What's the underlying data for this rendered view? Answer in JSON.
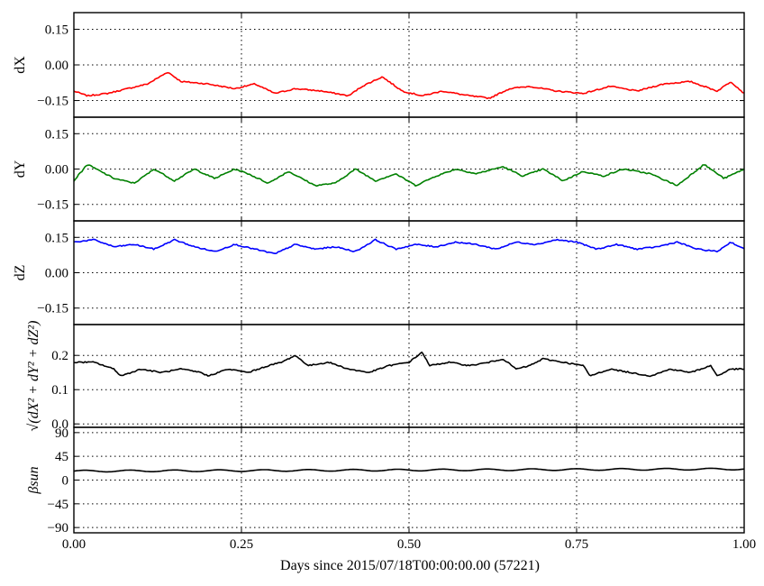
{
  "chart_data": {
    "type": "line",
    "xlabel": "Days since 2015/07/18T00:00:00.00 (57221)",
    "xlim": [
      0.0,
      1.0
    ],
    "xticks": [
      0.0,
      0.25,
      0.5,
      0.75,
      1.0
    ],
    "xtick_labels": [
      "0.00",
      "0.25",
      "0.50",
      "0.75",
      "1.00"
    ],
    "grid": true,
    "panels": [
      {
        "id": "dx",
        "ylabel": "dX",
        "ylim": [
          -0.22,
          0.22
        ],
        "yticks": [
          -0.15,
          0.0,
          0.15
        ],
        "ytick_labels": [
          "−0.15",
          "0.00",
          "0.15"
        ],
        "color": "#ff0000",
        "series": {
          "x": [
            0.0,
            0.02,
            0.05,
            0.08,
            0.11,
            0.14,
            0.16,
            0.2,
            0.24,
            0.27,
            0.3,
            0.33,
            0.37,
            0.41,
            0.43,
            0.46,
            0.49,
            0.52,
            0.55,
            0.59,
            0.62,
            0.65,
            0.68,
            0.72,
            0.76,
            0.8,
            0.84,
            0.88,
            0.92,
            0.96,
            0.98,
            1.0
          ],
          "y": [
            -0.11,
            -0.13,
            -0.12,
            -0.1,
            -0.08,
            -0.03,
            -0.07,
            -0.08,
            -0.1,
            -0.08,
            -0.12,
            -0.1,
            -0.11,
            -0.13,
            -0.09,
            -0.05,
            -0.11,
            -0.13,
            -0.11,
            -0.13,
            -0.14,
            -0.1,
            -0.09,
            -0.11,
            -0.12,
            -0.09,
            -0.11,
            -0.08,
            -0.07,
            -0.11,
            -0.07,
            -0.12
          ]
        }
      },
      {
        "id": "dy",
        "ylabel": "dY",
        "ylim": [
          -0.22,
          0.22
        ],
        "yticks": [
          -0.15,
          0.0,
          0.15
        ],
        "ytick_labels": [
          "−0.15",
          "0.00",
          "0.15"
        ],
        "color": "#008000",
        "series": {
          "x": [
            0.0,
            0.02,
            0.04,
            0.06,
            0.09,
            0.12,
            0.15,
            0.18,
            0.21,
            0.24,
            0.26,
            0.29,
            0.32,
            0.36,
            0.39,
            0.42,
            0.45,
            0.48,
            0.51,
            0.54,
            0.57,
            0.6,
            0.64,
            0.67,
            0.7,
            0.73,
            0.76,
            0.79,
            0.82,
            0.86,
            0.9,
            0.94,
            0.97,
            1.0
          ],
          "y": [
            -0.05,
            0.02,
            -0.01,
            -0.04,
            -0.06,
            0.0,
            -0.05,
            0.0,
            -0.04,
            0.0,
            -0.02,
            -0.06,
            -0.01,
            -0.07,
            -0.06,
            0.0,
            -0.05,
            -0.02,
            -0.07,
            -0.03,
            0.0,
            -0.02,
            0.01,
            -0.03,
            0.0,
            -0.05,
            -0.01,
            -0.03,
            0.0,
            -0.02,
            -0.07,
            0.02,
            -0.04,
            0.0
          ]
        }
      },
      {
        "id": "dz",
        "ylabel": "dZ",
        "ylim": [
          -0.22,
          0.22
        ],
        "yticks": [
          -0.15,
          0.0,
          0.15
        ],
        "ytick_labels": [
          "−0.15",
          "0.00",
          "0.15"
        ],
        "color": "#0000ff",
        "series": {
          "x": [
            0.0,
            0.03,
            0.06,
            0.09,
            0.12,
            0.15,
            0.18,
            0.21,
            0.24,
            0.27,
            0.3,
            0.33,
            0.36,
            0.39,
            0.42,
            0.45,
            0.48,
            0.51,
            0.54,
            0.57,
            0.6,
            0.63,
            0.66,
            0.69,
            0.72,
            0.75,
            0.78,
            0.81,
            0.84,
            0.87,
            0.9,
            0.93,
            0.96,
            0.98,
            1.0
          ],
          "y": [
            0.13,
            0.14,
            0.11,
            0.12,
            0.1,
            0.14,
            0.11,
            0.09,
            0.12,
            0.1,
            0.08,
            0.12,
            0.1,
            0.11,
            0.09,
            0.14,
            0.1,
            0.12,
            0.11,
            0.13,
            0.12,
            0.1,
            0.13,
            0.12,
            0.14,
            0.13,
            0.1,
            0.12,
            0.1,
            0.11,
            0.13,
            0.1,
            0.09,
            0.13,
            0.1
          ]
        }
      },
      {
        "id": "norm",
        "ylabel": "√(dX² + dY² + dZ²)",
        "ylim": [
          -0.01,
          0.29
        ],
        "yticks": [
          0.0,
          0.1,
          0.2
        ],
        "ytick_labels": [
          "0.0",
          "0.1",
          "0.2"
        ],
        "color": "#000000",
        "series": {
          "x": [
            0.0,
            0.03,
            0.06,
            0.07,
            0.1,
            0.13,
            0.16,
            0.19,
            0.2,
            0.23,
            0.26,
            0.29,
            0.31,
            0.33,
            0.35,
            0.38,
            0.41,
            0.44,
            0.47,
            0.5,
            0.52,
            0.53,
            0.56,
            0.59,
            0.62,
            0.64,
            0.66,
            0.68,
            0.7,
            0.73,
            0.76,
            0.77,
            0.8,
            0.83,
            0.86,
            0.89,
            0.92,
            0.95,
            0.96,
            0.98,
            1.0
          ],
          "y": [
            0.18,
            0.18,
            0.16,
            0.14,
            0.16,
            0.15,
            0.16,
            0.15,
            0.14,
            0.16,
            0.15,
            0.17,
            0.18,
            0.2,
            0.17,
            0.18,
            0.16,
            0.15,
            0.17,
            0.18,
            0.21,
            0.17,
            0.18,
            0.17,
            0.18,
            0.19,
            0.16,
            0.17,
            0.19,
            0.18,
            0.17,
            0.14,
            0.16,
            0.15,
            0.14,
            0.16,
            0.15,
            0.17,
            0.14,
            0.16,
            0.16
          ]
        }
      },
      {
        "id": "beta",
        "ylabel": "βsun",
        "ylim": [
          -100,
          100
        ],
        "yticks": [
          -90,
          -45,
          0,
          45,
          90
        ],
        "ytick_labels": [
          "−90",
          "−45",
          "0",
          "45",
          "90"
        ],
        "color": "#000000",
        "series": {
          "x": [
            0.0,
            0.1,
            0.2,
            0.3,
            0.4,
            0.5,
            0.6,
            0.7,
            0.8,
            0.9,
            1.0
          ],
          "y": [
            17.0,
            17.4,
            17.8,
            18.2,
            18.6,
            19.0,
            19.4,
            19.8,
            20.2,
            20.6,
            21.0
          ]
        }
      }
    ]
  }
}
